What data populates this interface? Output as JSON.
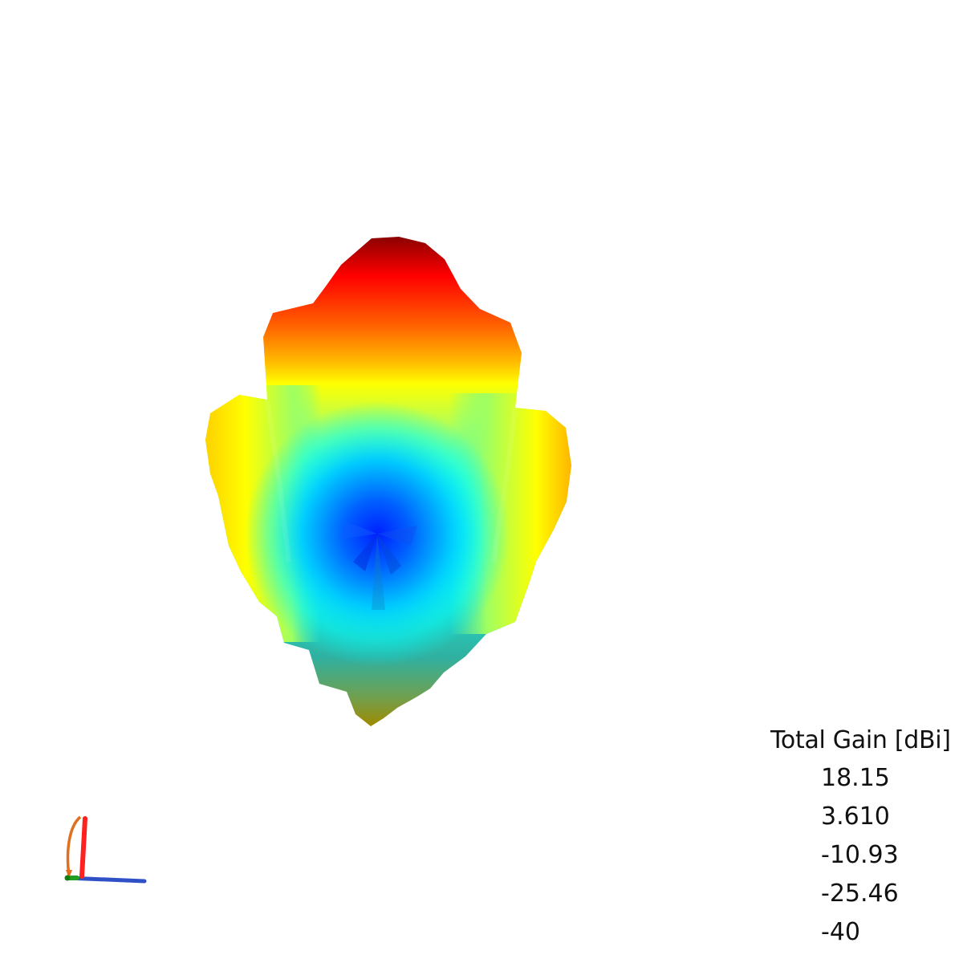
{
  "legend": {
    "title": "Total Gain [dBi]",
    "values": [
      "18.15",
      "3.610",
      "-10.93",
      "-25.46",
      "-40"
    ]
  },
  "colormap": [
    "#0000ff",
    "#00ffff",
    "#7fff3f",
    "#ffff00",
    "#ff8000",
    "#ff0000",
    "#8b0000"
  ],
  "pattern_icon": "3d-radiation-pattern",
  "triad_icon": "axis-triad-icon",
  "axis_colors": {
    "x": "#3050c8",
    "y": "#20a020",
    "z": "#ff2020",
    "rotation": "#e07020"
  }
}
